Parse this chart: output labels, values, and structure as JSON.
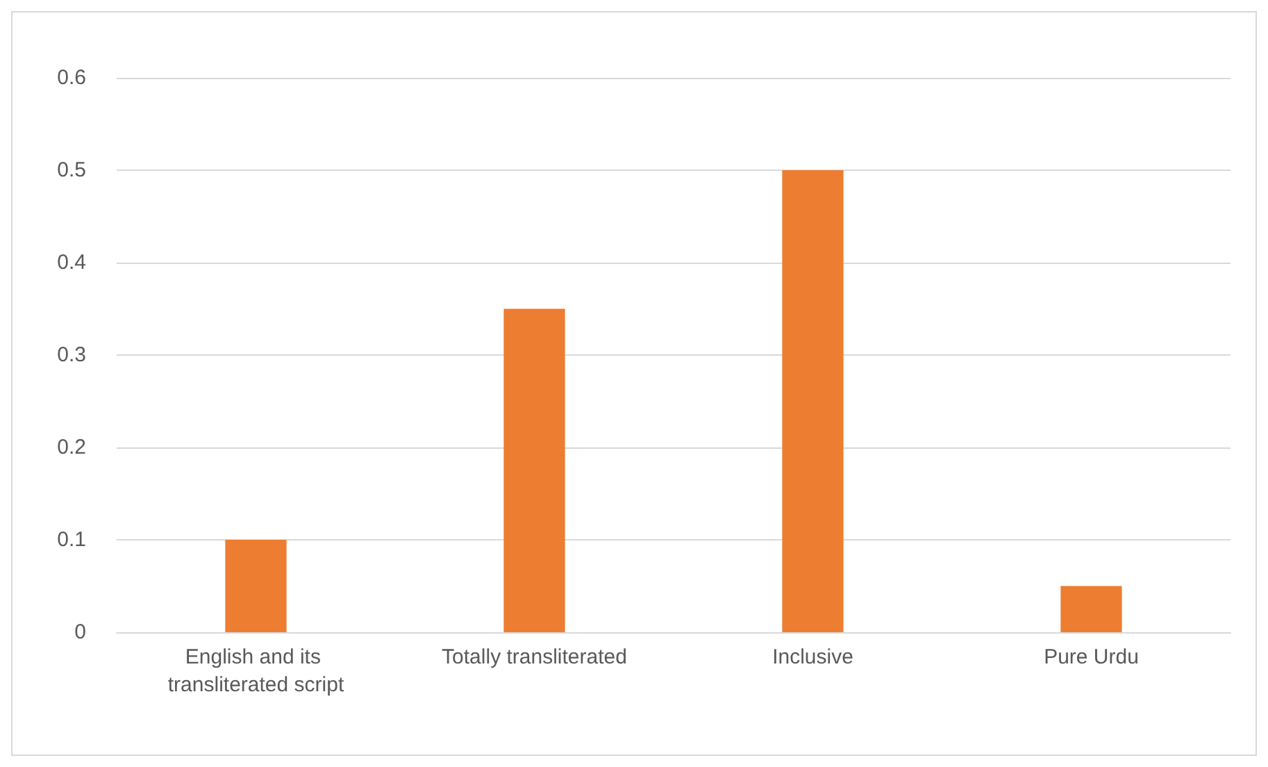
{
  "chart_data": {
    "type": "bar",
    "categories": [
      "English and its transliterated script",
      "Totally transliterated",
      "Inclusive",
      "Pure Urdu"
    ],
    "values": [
      0.1,
      0.35,
      0.5,
      0.05
    ],
    "color": "#ed7d31",
    "ylim": [
      0,
      0.6
    ],
    "yticks": [
      0,
      0.1,
      0.2,
      0.3,
      0.4,
      0.5,
      0.6
    ],
    "grid": "y"
  }
}
